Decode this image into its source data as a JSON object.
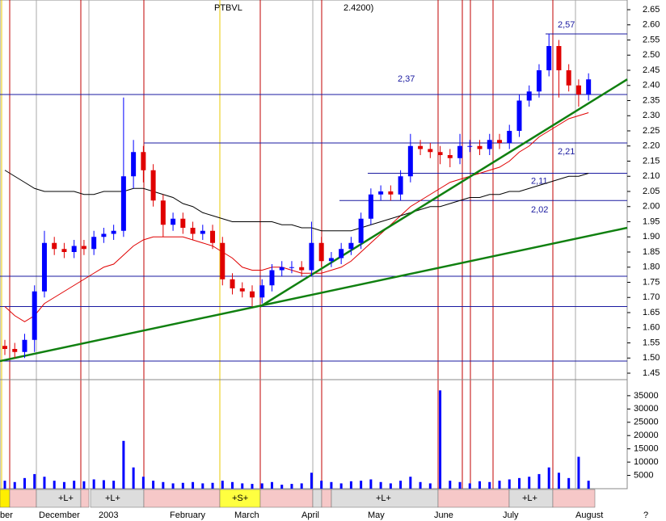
{
  "chart_data": {
    "type": "candlestick",
    "title": "PTBVL",
    "subtitle": "2.4200)",
    "ylim": [
      1.43,
      2.67
    ],
    "yticks": [
      1.45,
      {
        "value": 1.5,
        "label": "1.50"
      },
      1.55,
      {
        "value": 1.6,
        "label": "1.60"
      },
      1.65,
      {
        "value": 1.7,
        "label": "1.70"
      },
      1.75,
      {
        "value": 1.8,
        "label": "1.80"
      },
      1.85,
      {
        "value": 1.9,
        "label": "1.90"
      },
      1.95,
      {
        "value": 2.0,
        "label": "2.00"
      },
      2.05,
      {
        "value": 2.1,
        "label": "2.10"
      },
      2.15,
      {
        "value": 2.2,
        "label": "2.20"
      },
      2.25,
      {
        "value": 2.3,
        "label": "2.30"
      },
      2.35,
      {
        "value": 2.4,
        "label": "2.40"
      },
      2.45,
      {
        "value": 2.5,
        "label": "2.50"
      },
      2.55,
      {
        "value": 2.6,
        "label": "2.60"
      },
      2.65
    ],
    "up_color": "#0000ff",
    "down_color": "#e00000",
    "candles": [
      [
        1.54,
        1.56,
        1.51,
        1.53
      ],
      [
        1.53,
        1.55,
        1.5,
        1.52
      ],
      [
        1.52,
        1.58,
        1.5,
        1.56
      ],
      [
        1.56,
        1.74,
        1.52,
        1.72
      ],
      [
        1.72,
        1.92,
        1.7,
        1.88
      ],
      [
        1.88,
        1.9,
        1.84,
        1.86
      ],
      [
        1.86,
        1.88,
        1.83,
        1.85
      ],
      [
        1.85,
        1.89,
        1.83,
        1.87
      ],
      [
        1.87,
        1.89,
        1.84,
        1.86
      ],
      [
        1.86,
        1.92,
        1.84,
        1.9
      ],
      [
        1.9,
        1.93,
        1.88,
        1.91
      ],
      [
        1.91,
        1.94,
        1.89,
        1.92
      ],
      [
        1.92,
        2.36,
        1.9,
        2.1
      ],
      [
        2.1,
        2.22,
        2.06,
        2.18
      ],
      [
        2.18,
        2.2,
        2.08,
        2.12
      ],
      [
        2.12,
        2.14,
        2.0,
        2.02
      ],
      [
        2.02,
        2.04,
        1.9,
        1.94
      ],
      [
        1.94,
        1.98,
        1.92,
        1.96
      ],
      [
        1.96,
        1.98,
        1.91,
        1.93
      ],
      [
        1.93,
        1.95,
        1.89,
        1.91
      ],
      [
        1.91,
        1.94,
        1.89,
        1.92
      ],
      [
        1.92,
        1.94,
        1.86,
        1.88
      ],
      [
        1.88,
        1.9,
        1.74,
        1.76
      ],
      [
        1.76,
        1.78,
        1.71,
        1.73
      ],
      [
        1.73,
        1.75,
        1.7,
        1.72
      ],
      [
        1.72,
        1.74,
        1.67,
        1.7
      ],
      [
        1.7,
        1.76,
        1.68,
        1.74
      ],
      [
        1.74,
        1.81,
        1.72,
        1.79
      ],
      [
        1.79,
        1.82,
        1.77,
        1.8
      ],
      [
        1.8,
        1.82,
        1.78,
        1.8
      ],
      [
        1.8,
        1.82,
        1.77,
        1.79
      ],
      [
        1.79,
        1.95,
        1.77,
        1.88
      ],
      [
        1.88,
        1.9,
        1.8,
        1.82
      ],
      [
        1.82,
        1.85,
        1.8,
        1.83
      ],
      [
        1.83,
        1.88,
        1.81,
        1.86
      ],
      [
        1.86,
        1.9,
        1.84,
        1.88
      ],
      [
        1.88,
        1.98,
        1.86,
        1.96
      ],
      [
        1.96,
        2.06,
        1.94,
        2.04
      ],
      [
        2.04,
        2.07,
        2.02,
        2.05
      ],
      [
        2.05,
        2.07,
        2.02,
        2.04
      ],
      [
        2.04,
        2.12,
        2.02,
        2.1
      ],
      [
        2.1,
        2.24,
        2.08,
        2.2
      ],
      [
        2.2,
        2.22,
        2.17,
        2.19
      ],
      [
        2.19,
        2.21,
        2.16,
        2.18
      ],
      [
        2.18,
        2.2,
        2.14,
        2.17
      ],
      [
        2.17,
        2.19,
        2.13,
        2.16
      ],
      [
        2.16,
        2.24,
        2.14,
        2.2
      ],
      [
        2.2,
        2.22,
        2.18,
        2.2
      ],
      [
        2.2,
        2.22,
        2.17,
        2.19
      ],
      [
        2.19,
        2.24,
        2.17,
        2.22
      ],
      [
        2.22,
        2.24,
        2.19,
        2.21
      ],
      [
        2.21,
        2.27,
        2.19,
        2.25
      ],
      [
        2.25,
        2.37,
        2.23,
        2.35
      ],
      [
        2.35,
        2.4,
        2.33,
        2.38
      ],
      [
        2.38,
        2.47,
        2.36,
        2.45
      ],
      [
        2.45,
        2.57,
        2.43,
        2.53
      ],
      [
        2.53,
        2.55,
        2.36,
        2.45
      ],
      [
        2.45,
        2.47,
        2.38,
        2.4
      ],
      [
        2.4,
        2.42,
        2.33,
        2.37
      ],
      [
        2.37,
        2.44,
        2.35,
        2.42
      ]
    ],
    "lines": [
      {
        "color": "#e00000",
        "values": [
          1.67,
          1.64,
          1.62,
          1.64,
          1.68,
          1.7,
          1.72,
          1.74,
          1.76,
          1.78,
          1.8,
          1.81,
          1.84,
          1.87,
          1.89,
          1.9,
          1.9,
          1.9,
          1.9,
          1.89,
          1.88,
          1.87,
          1.85,
          1.83,
          1.8,
          1.79,
          1.79,
          1.8,
          1.8,
          1.79,
          1.78,
          1.78,
          1.78,
          1.79,
          1.8,
          1.82,
          1.85,
          1.88,
          1.91,
          1.94,
          1.97,
          2.0,
          2.02,
          2.04,
          2.06,
          2.08,
          2.09,
          2.1,
          2.11,
          2.12,
          2.13,
          2.15,
          2.18,
          2.2,
          2.23,
          2.25,
          2.27,
          2.29,
          2.3,
          2.31
        ]
      },
      {
        "color": "#000000",
        "values": [
          2.12,
          2.1,
          2.08,
          2.06,
          2.05,
          2.05,
          2.05,
          2.05,
          2.04,
          2.04,
          2.05,
          2.05,
          2.05,
          2.06,
          2.06,
          2.05,
          2.04,
          2.03,
          2.01,
          2.0,
          1.98,
          1.97,
          1.96,
          1.95,
          1.95,
          1.95,
          1.95,
          1.95,
          1.94,
          1.94,
          1.93,
          1.93,
          1.92,
          1.92,
          1.92,
          1.92,
          1.93,
          1.94,
          1.95,
          1.96,
          1.97,
          1.98,
          1.99,
          2.0,
          2.0,
          2.01,
          2.02,
          2.03,
          2.03,
          2.04,
          2.04,
          2.05,
          2.05,
          2.06,
          2.07,
          2.08,
          2.09,
          2.1,
          2.1,
          2.11
        ]
      }
    ],
    "trendlines": [
      {
        "color": "#108010",
        "y": [
          1.49,
          1.93
        ]
      },
      {
        "color": "#108010",
        "y": [
          1.67,
          2.42
        ]
      }
    ],
    "levels": [
      {
        "value": 2.57,
        "label": "2,57"
      },
      {
        "value": 2.37,
        "label": "2,37"
      },
      {
        "value": 2.21,
        "label": "2,21"
      },
      {
        "value": 2.11,
        "label": "2,11"
      },
      {
        "value": 2.02,
        "label": "2,02"
      },
      1.77,
      1.67,
      1.49
    ],
    "volume": [
      3000,
      2500,
      4000,
      5500,
      4500,
      3000,
      2500,
      3000,
      2800,
      3500,
      3200,
      3000,
      18000,
      8000,
      4500,
      3000,
      2500,
      2000,
      2200,
      2500,
      2000,
      2200,
      3000,
      2500,
      2000,
      1800,
      2000,
      2500,
      1500,
      1800,
      2000,
      6000,
      3000,
      2500,
      2000,
      2800,
      3000,
      3500,
      2500,
      2000,
      3000,
      4500,
      2500,
      2000,
      37000,
      3000,
      2500,
      2000,
      2800,
      2500,
      3000,
      3500,
      4000,
      4500,
      5500,
      8000,
      6000,
      4000,
      12000,
      3000
    ],
    "volume_color": "#0000ff",
    "vlim": [
      0,
      38000
    ],
    "vticks": [
      5000,
      10000,
      15000,
      20000,
      25000,
      30000,
      35000
    ],
    "months": [
      "ber",
      "December",
      "2003",
      "February",
      "March",
      "April",
      "May",
      "June",
      "July",
      "August",
      "?"
    ],
    "band_labels": [
      "+L+",
      "+L+",
      "+S+",
      "+L+",
      "+L+"
    ]
  }
}
